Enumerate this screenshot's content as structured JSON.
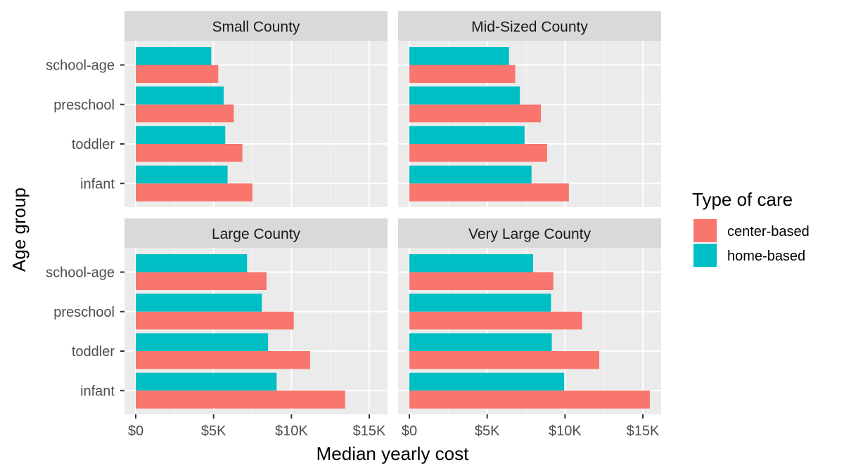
{
  "chart_data": {
    "type": "bar",
    "orientation": "horizontal",
    "xlabel": "Median yearly cost",
    "ylabel": "Age group",
    "xlim": [
      0,
      15500
    ],
    "x_ticks": [
      {
        "value": 0,
        "label": "$0"
      },
      {
        "value": 5000,
        "label": "$5K"
      },
      {
        "value": 10000,
        "label": "$10K"
      },
      {
        "value": 15000,
        "label": "$15K"
      }
    ],
    "categories": [
      "school-age",
      "preschool",
      "toddler",
      "infant"
    ],
    "legend": {
      "title": "Type of care",
      "placement": "right",
      "entries": [
        {
          "name": "center-based",
          "color": "#F8766D"
        },
        {
          "name": "home-based",
          "color": "#00BFC4"
        }
      ]
    },
    "grid": true,
    "panels": [
      {
        "title": "Small County",
        "series": [
          {
            "name": "center-based",
            "values": [
              5300,
              6300,
              6850,
              7500
            ]
          },
          {
            "name": "home-based",
            "values": [
              4850,
              5650,
              5750,
              5900
            ]
          }
        ]
      },
      {
        "title": "Mid-Sized County",
        "series": [
          {
            "name": "center-based",
            "values": [
              6800,
              8450,
              8850,
              10250
            ]
          },
          {
            "name": "home-based",
            "values": [
              6400,
              7100,
              7400,
              7850
            ]
          }
        ]
      },
      {
        "title": "Large County",
        "series": [
          {
            "name": "center-based",
            "values": [
              8400,
              10150,
              11200,
              13450
            ]
          },
          {
            "name": "home-based",
            "values": [
              7150,
              8100,
              8500,
              9050
            ]
          }
        ]
      },
      {
        "title": "Very Large County",
        "series": [
          {
            "name": "center-based",
            "values": [
              9250,
              11100,
              12200,
              15450
            ]
          },
          {
            "name": "home-based",
            "values": [
              7950,
              9100,
              9150,
              9950
            ]
          }
        ]
      }
    ]
  }
}
